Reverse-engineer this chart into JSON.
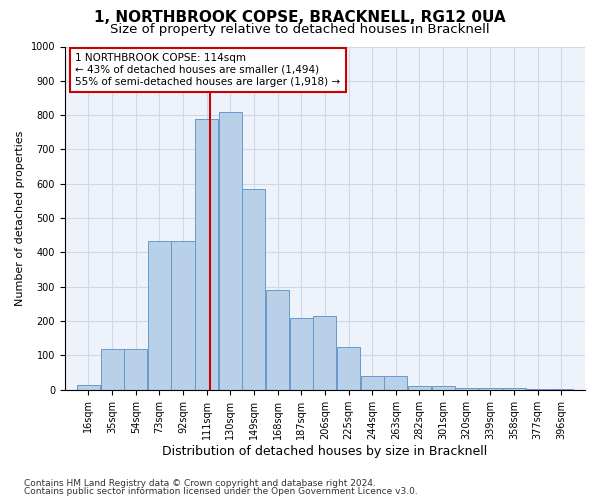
{
  "title": "1, NORTHBROOK COPSE, BRACKNELL, RG12 0UA",
  "subtitle": "Size of property relative to detached houses in Bracknell",
  "xlabel": "Distribution of detached houses by size in Bracknell",
  "ylabel": "Number of detached properties",
  "bins": [
    16,
    35,
    54,
    73,
    92,
    111,
    130,
    149,
    168,
    187,
    206,
    225,
    244,
    263,
    282,
    301,
    320,
    339,
    358,
    377,
    396
  ],
  "values": [
    15,
    120,
    120,
    432,
    432,
    790,
    810,
    585,
    290,
    210,
    215,
    125,
    40,
    40,
    12,
    10,
    5,
    5,
    5,
    3,
    3
  ],
  "bar_color": "#b8d0e8",
  "bar_edge_color": "#6699cc",
  "property_size": 114,
  "red_line_color": "#cc0000",
  "annotation_text": "1 NORTHBROOK COPSE: 114sqm\n← 43% of detached houses are smaller (1,494)\n55% of semi-detached houses are larger (1,918) →",
  "annotation_box_color": "#ffffff",
  "annotation_box_edge_color": "#cc0000",
  "ylim": [
    0,
    1000
  ],
  "yticks": [
    0,
    100,
    200,
    300,
    400,
    500,
    600,
    700,
    800,
    900,
    1000
  ],
  "grid_color": "#d0d8e8",
  "background_color": "#eef2fa",
  "footer_line1": "Contains HM Land Registry data © Crown copyright and database right 2024.",
  "footer_line2": "Contains public sector information licensed under the Open Government Licence v3.0.",
  "title_fontsize": 11,
  "subtitle_fontsize": 9.5,
  "xlabel_fontsize": 9,
  "ylabel_fontsize": 8,
  "tick_fontsize": 7,
  "annotation_fontsize": 7.5,
  "footer_fontsize": 6.5
}
